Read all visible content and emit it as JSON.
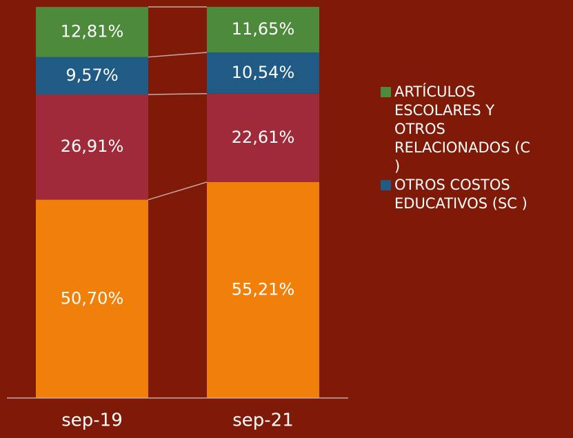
{
  "chart_data": {
    "type": "stacked_bar",
    "categories": [
      "sep-19",
      "sep-21"
    ],
    "series": [
      {
        "color": "#f0800a",
        "values": [
          50.7,
          55.21
        ],
        "value_labels": [
          "50,70%",
          "55,21%"
        ]
      },
      {
        "color": "#9f2a3a",
        "values": [
          26.91,
          22.61
        ],
        "value_labels": [
          "26,91%",
          "22,61%"
        ]
      },
      {
        "name": "OTROS COSTOS EDUCATIVOS (SC )",
        "color": "#1f5b84",
        "values": [
          9.57,
          10.54
        ],
        "value_labels": [
          "9,57%",
          "10,54%"
        ]
      },
      {
        "name": "ARTÍCULOS ESCOLARES Y OTROS RELACIONADOS (C )",
        "color": "#4d8a3c",
        "values": [
          12.81,
          11.65
        ],
        "value_labels": [
          "12,81%",
          "11,65%"
        ]
      }
    ],
    "ylim": [
      0,
      100
    ]
  }
}
